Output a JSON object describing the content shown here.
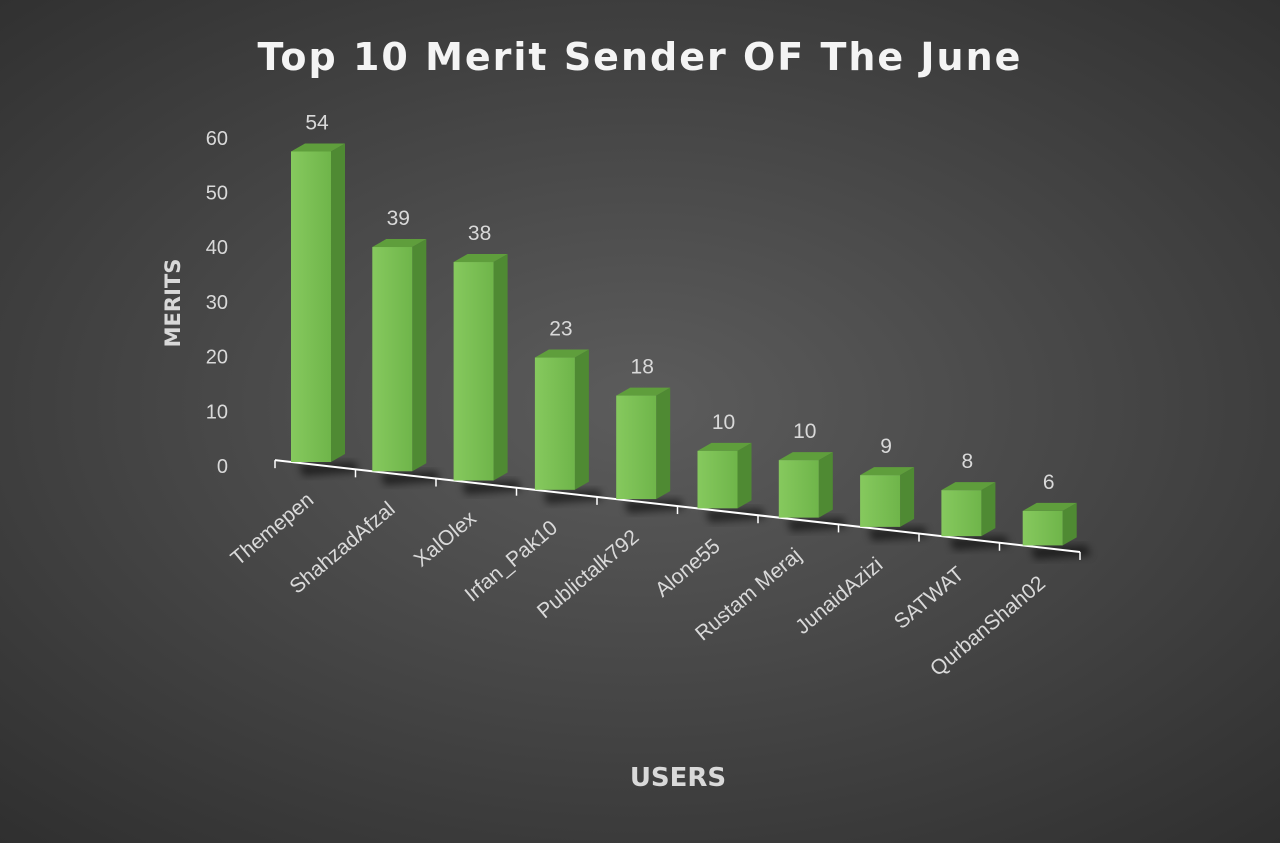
{
  "chart_data": {
    "type": "bar",
    "style": "3d-column",
    "title": "Top 10 Merit Sender OF The June",
    "xlabel": "USERS",
    "ylabel": "MERITS",
    "categories": [
      "Themepen",
      "ShahzadAfzal",
      "XalOlex",
      "Irfan_Pak10",
      "Publictalk792",
      "Alone55",
      "Rustam Meraj",
      "JunaidAzizi",
      "SATWAT",
      "QurbanShah02"
    ],
    "values": [
      54,
      39,
      38,
      23,
      18,
      10,
      10,
      9,
      8,
      6
    ],
    "ylim": [
      0,
      60
    ],
    "yticks": [
      "0",
      "10",
      "20",
      "30",
      "40",
      "50",
      "60"
    ],
    "grid": false,
    "legend": "none",
    "colors": {
      "bar_front": "#7cc156",
      "bar_side": "#4f8a33",
      "bar_top": "#5f9e3c",
      "axis": "#ffffff",
      "text": "#d9d9d9",
      "title": "#f4f4f4"
    }
  }
}
